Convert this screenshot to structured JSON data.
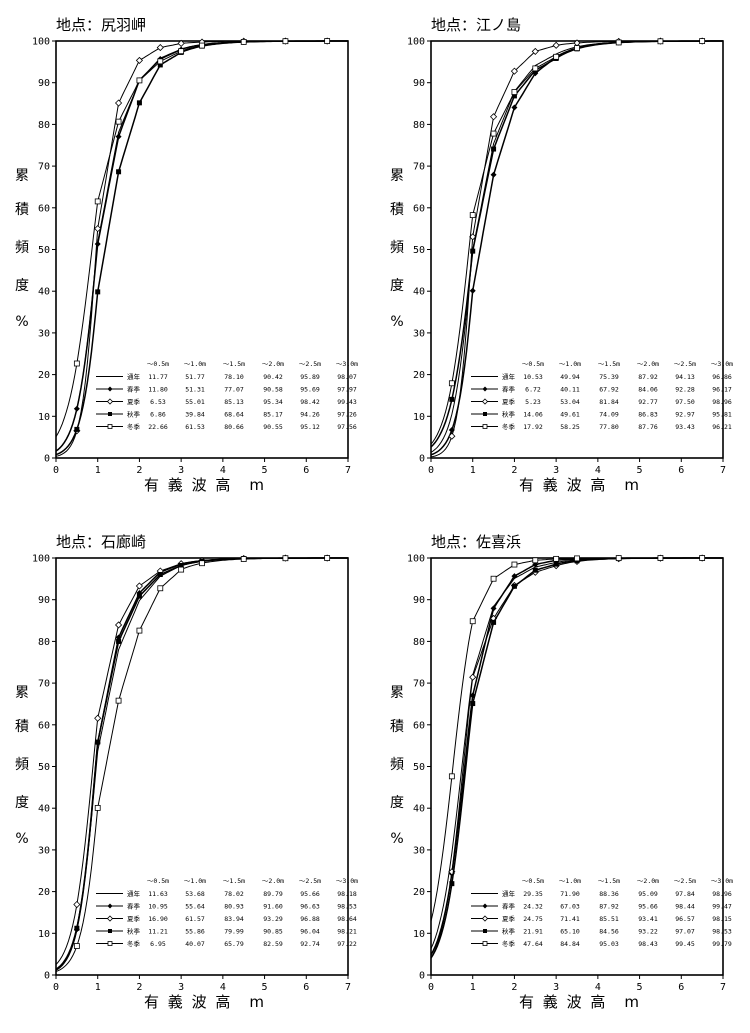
{
  "chart_data": [
    {
      "type": "line",
      "title": "地点：尻羽岬",
      "ylabel": [
        "累",
        "積",
        "頻",
        "度",
        "%"
      ],
      "xlabel": "有 義 波 高　m",
      "xlim": [
        0,
        7
      ],
      "ylim": [
        0,
        100
      ],
      "x_ticks": [
        "0",
        "1",
        "2",
        "3",
        "4",
        "5",
        "6",
        "7"
      ],
      "y_ticks": [
        "0",
        "10",
        "20",
        "30",
        "40",
        "50",
        "60",
        "70",
        "80",
        "90",
        "100"
      ],
      "table_headers": [
        "～0.5m",
        "～1.0m",
        "～1.5m",
        "～2.0m",
        "～2.5m",
        "～3.0m"
      ],
      "x": [
        0.5,
        1.0,
        1.5,
        2.0,
        2.5,
        3.0
      ],
      "series": [
        {
          "name": "通年",
          "marker": "none",
          "values": [
            11.77,
            51.77,
            78.1,
            90.42,
            95.89,
            98.07
          ]
        },
        {
          "name": "春季",
          "marker": "filled-diamond",
          "values": [
            11.8,
            51.31,
            77.07,
            90.58,
            95.69,
            97.97
          ]
        },
        {
          "name": "夏季",
          "marker": "open-diamond",
          "values": [
            6.53,
            55.01,
            85.13,
            95.34,
            98.42,
            99.43
          ]
        },
        {
          "name": "秋季",
          "marker": "filled-square",
          "values": [
            6.86,
            39.84,
            68.64,
            85.17,
            94.26,
            97.26
          ]
        },
        {
          "name": "冬季",
          "marker": "open-square",
          "values": [
            22.66,
            61.53,
            80.66,
            90.55,
            95.12,
            97.56
          ]
        }
      ]
    },
    {
      "type": "line",
      "title": "地点：江ノ島",
      "ylabel": [
        "累",
        "積",
        "頻",
        "度",
        "%"
      ],
      "xlabel": "有 義 波 高　m",
      "xlim": [
        0,
        7
      ],
      "ylim": [
        0,
        100
      ],
      "x_ticks": [
        "0",
        "1",
        "2",
        "3",
        "4",
        "5",
        "6",
        "7"
      ],
      "y_ticks": [
        "0",
        "10",
        "20",
        "30",
        "40",
        "50",
        "60",
        "70",
        "80",
        "90",
        "100"
      ],
      "table_headers": [
        "～0.5m",
        "～1.0m",
        "～1.5m",
        "～2.0m",
        "～2.5m",
        "～3.0m"
      ],
      "x": [
        0.5,
        1.0,
        1.5,
        2.0,
        2.5,
        3.0
      ],
      "series": [
        {
          "name": "通年",
          "marker": "none",
          "values": [
            10.53,
            49.94,
            75.39,
            87.92,
            94.13,
            96.86
          ]
        },
        {
          "name": "春季",
          "marker": "filled-diamond",
          "values": [
            6.72,
            40.11,
            67.92,
            84.06,
            92.28,
            96.17
          ]
        },
        {
          "name": "夏季",
          "marker": "open-diamond",
          "values": [
            5.23,
            53.04,
            81.84,
            92.77,
            97.5,
            98.96
          ]
        },
        {
          "name": "秋季",
          "marker": "filled-square",
          "values": [
            14.06,
            49.61,
            74.09,
            86.83,
            92.97,
            95.81
          ]
        },
        {
          "name": "冬季",
          "marker": "open-square",
          "values": [
            17.92,
            58.25,
            77.8,
            87.76,
            93.43,
            96.21
          ]
        }
      ]
    },
    {
      "type": "line",
      "title": "地点：石廊崎",
      "ylabel": [
        "累",
        "積",
        "頻",
        "度",
        "%"
      ],
      "xlabel": "有 義 波 高　m",
      "xlim": [
        0,
        7
      ],
      "ylim": [
        0,
        100
      ],
      "x_ticks": [
        "0",
        "1",
        "2",
        "3",
        "4",
        "5",
        "6",
        "7"
      ],
      "y_ticks": [
        "0",
        "10",
        "20",
        "30",
        "40",
        "50",
        "60",
        "70",
        "80",
        "90",
        "100"
      ],
      "table_headers": [
        "～0.5m",
        "～1.0m",
        "～1.5m",
        "～2.0m",
        "～2.5m",
        "～3.0m"
      ],
      "x": [
        0.5,
        1.0,
        1.5,
        2.0,
        2.5,
        3.0
      ],
      "series": [
        {
          "name": "通年",
          "marker": "none",
          "values": [
            11.63,
            53.68,
            78.02,
            89.79,
            95.66,
            98.18
          ]
        },
        {
          "name": "春季",
          "marker": "filled-diamond",
          "values": [
            10.95,
            55.64,
            80.93,
            91.6,
            96.63,
            98.53
          ]
        },
        {
          "name": "夏季",
          "marker": "open-diamond",
          "values": [
            16.9,
            61.57,
            83.94,
            93.29,
            96.88,
            98.64
          ]
        },
        {
          "name": "秋季",
          "marker": "filled-square",
          "values": [
            11.21,
            55.86,
            79.99,
            90.85,
            96.04,
            98.21
          ]
        },
        {
          "name": "冬季",
          "marker": "open-square",
          "values": [
            6.95,
            40.07,
            65.79,
            82.59,
            92.74,
            97.22
          ]
        }
      ]
    },
    {
      "type": "line",
      "title": "地点：佐喜浜",
      "ylabel": [
        "累",
        "積",
        "頻",
        "度",
        "%"
      ],
      "xlabel": "有 義 波 高　m",
      "xlim": [
        0,
        7
      ],
      "ylim": [
        0,
        100
      ],
      "x_ticks": [
        "0",
        "1",
        "2",
        "3",
        "4",
        "5",
        "6",
        "7"
      ],
      "y_ticks": [
        "0",
        "10",
        "20",
        "30",
        "40",
        "50",
        "60",
        "70",
        "80",
        "90",
        "100"
      ],
      "table_headers": [
        "～0.5m",
        "～1.0m",
        "～1.5m",
        "～2.0m",
        "～2.5m",
        "～3.0m"
      ],
      "x": [
        0.5,
        1.0,
        1.5,
        2.0,
        2.5,
        3.0
      ],
      "series": [
        {
          "name": "通年",
          "marker": "none",
          "values": [
            29.35,
            71.9,
            88.36,
            95.09,
            97.84,
            98.96
          ]
        },
        {
          "name": "春季",
          "marker": "filled-diamond",
          "values": [
            24.32,
            67.03,
            87.92,
            95.66,
            98.44,
            99.47
          ]
        },
        {
          "name": "夏季",
          "marker": "open-diamond",
          "values": [
            24.75,
            71.41,
            85.51,
            93.41,
            96.57,
            98.15
          ]
        },
        {
          "name": "秋季",
          "marker": "filled-square",
          "values": [
            21.91,
            65.1,
            84.56,
            93.22,
            97.07,
            98.53
          ]
        },
        {
          "name": "冬季",
          "marker": "open-square",
          "values": [
            47.64,
            84.84,
            95.03,
            98.43,
            99.45,
            99.79
          ]
        }
      ]
    }
  ]
}
